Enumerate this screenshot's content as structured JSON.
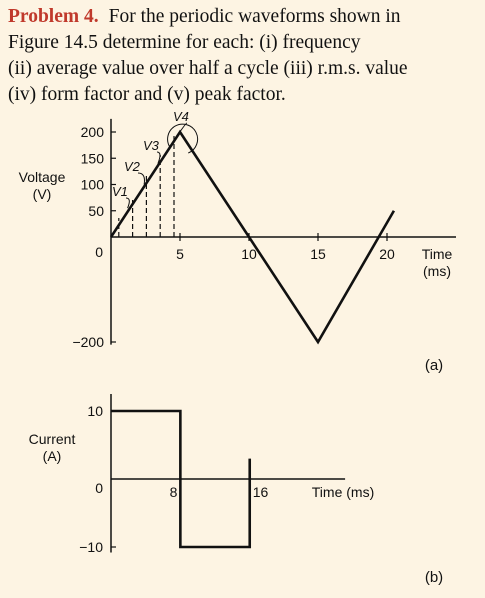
{
  "problem": {
    "lead": "Problem 4.",
    "lines": [
      "For the periodic waveforms shown in",
      "Figure 14.5 determine for each: (i) frequency",
      "(ii) average value over half a cycle (iii) r.m.s. value",
      "(iv) form factor and (v) peak factor."
    ]
  },
  "chart_data": [
    {
      "type": "line",
      "panel_label": "(a)",
      "ylabel_lines": [
        "Voltage",
        "(V)"
      ],
      "xlabel_lines": [
        "Time",
        "(ms)"
      ],
      "x_ticks": [
        5,
        10,
        15,
        20
      ],
      "y_ticks": [
        200,
        150,
        100,
        50,
        0,
        -200
      ],
      "xlim": [
        0,
        21
      ],
      "ylim": [
        -200,
        200
      ],
      "series": [
        {
          "x": [
            0,
            5,
            15,
            20.5
          ],
          "y": [
            0,
            200,
            -200,
            50
          ]
        }
      ],
      "ordinates": [
        1,
        2,
        3,
        4,
        5
      ],
      "ordinate_labels": [
        "V1",
        "V2",
        "V3",
        "V4"
      ]
    },
    {
      "type": "line",
      "panel_label": "(b)",
      "ylabel_lines": [
        "Current",
        "(A)"
      ],
      "xlabel": "Time (ms)",
      "x_ticks": [
        8,
        16
      ],
      "y_ticks": [
        10,
        0,
        -10
      ],
      "xlim": [
        0,
        21
      ],
      "ylim": [
        -10,
        10
      ],
      "series": [
        {
          "x": [
            0,
            8,
            8,
            16,
            16
          ],
          "y": [
            10,
            10,
            -10,
            -10,
            3
          ]
        }
      ]
    }
  ]
}
